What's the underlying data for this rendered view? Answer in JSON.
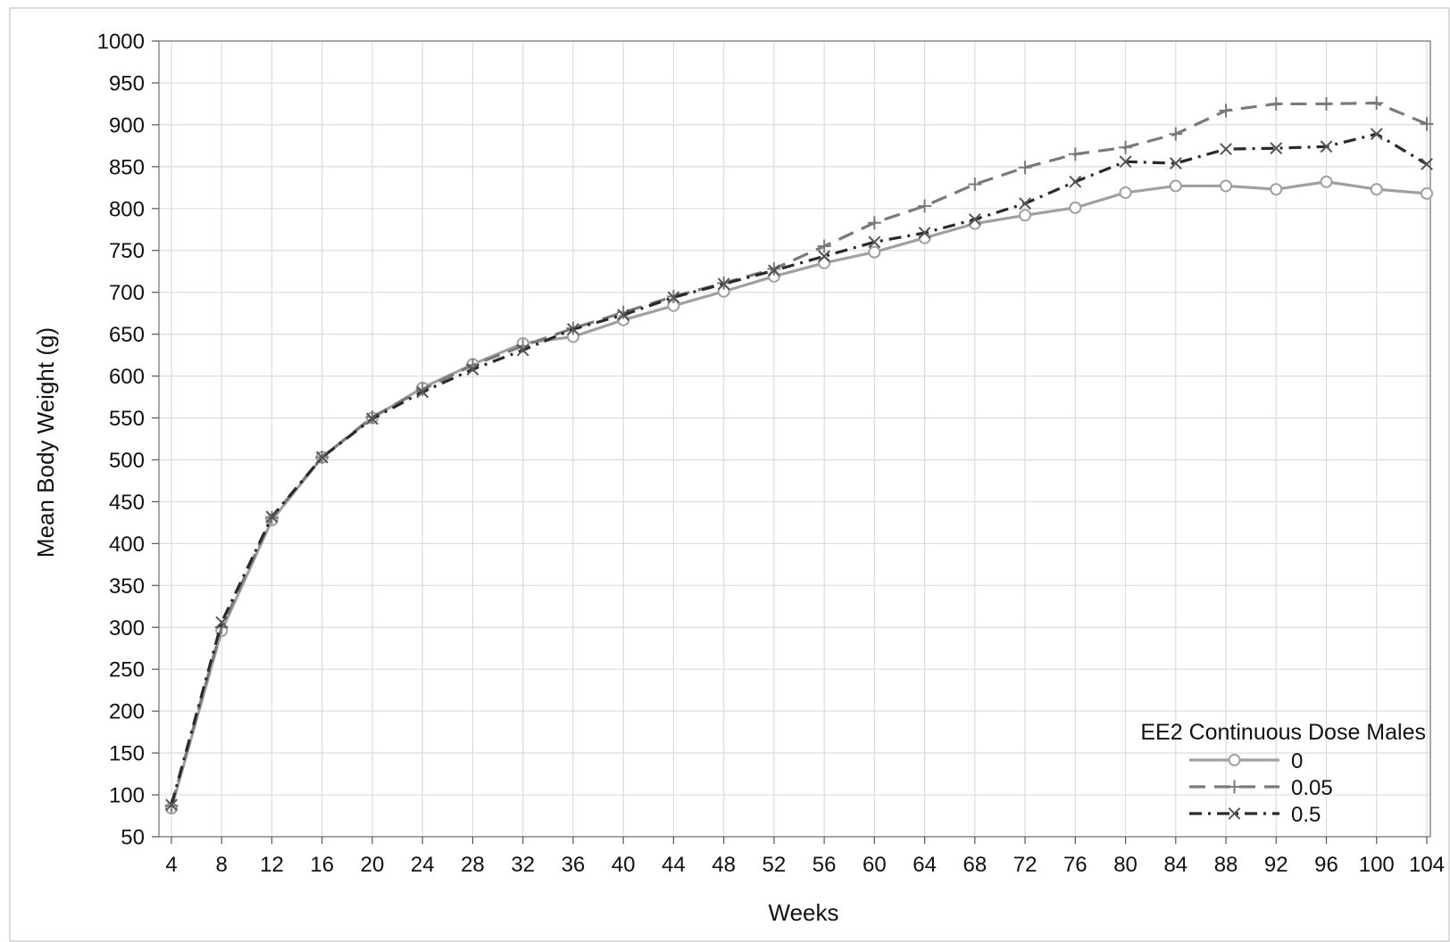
{
  "chart_data": {
    "type": "line",
    "title": "",
    "xlabel": "Weeks",
    "ylabel": "Mean Body Weight (g)",
    "x": [
      4,
      8,
      12,
      16,
      20,
      24,
      28,
      32,
      36,
      40,
      44,
      48,
      52,
      56,
      60,
      64,
      68,
      72,
      76,
      80,
      84,
      88,
      92,
      96,
      100,
      104
    ],
    "xticks": [
      "4",
      "8",
      "12",
      "16",
      "20",
      "24",
      "28",
      "32",
      "36",
      "40",
      "44",
      "48",
      "52",
      "56",
      "60",
      "64",
      "68",
      "72",
      "76",
      "80",
      "84",
      "88",
      "92",
      "96",
      "100",
      "104"
    ],
    "ylim": [
      50,
      1000
    ],
    "yticks": [
      "50",
      "100",
      "150",
      "200",
      "250",
      "300",
      "350",
      "400",
      "450",
      "500",
      "550",
      "600",
      "650",
      "700",
      "750",
      "800",
      "850",
      "900",
      "950",
      "1000"
    ],
    "grid": true,
    "legend": {
      "title": "EE2 Continuous Dose Males",
      "position": "bottom-right"
    },
    "series": [
      {
        "name": "0",
        "color": "#a0a0a0",
        "dash": "solid",
        "marker": "circle",
        "values": [
          84,
          296,
          428,
          503,
          550,
          586,
          614,
          639,
          647,
          667,
          684,
          701,
          719,
          735,
          748,
          765,
          782,
          792,
          801,
          819,
          827,
          827,
          823,
          832,
          823,
          818
        ]
      },
      {
        "name": "0.05",
        "color": "#7a7a7a",
        "dash": "dash",
        "marker": "plus",
        "values": [
          87,
          300,
          431,
          503,
          551,
          584,
          613,
          636,
          657,
          676,
          695,
          711,
          728,
          755,
          783,
          803,
          829,
          849,
          865,
          873,
          889,
          917,
          925,
          925,
          926,
          901
        ]
      },
      {
        "name": "0.5",
        "color": "#2a2a2a",
        "dash": "dashdot",
        "marker": "x",
        "values": [
          88,
          306,
          432,
          503,
          549,
          581,
          608,
          631,
          656,
          673,
          694,
          710,
          726,
          743,
          760,
          771,
          787,
          806,
          832,
          856,
          854,
          871,
          872,
          874,
          889,
          853
        ]
      }
    ]
  }
}
